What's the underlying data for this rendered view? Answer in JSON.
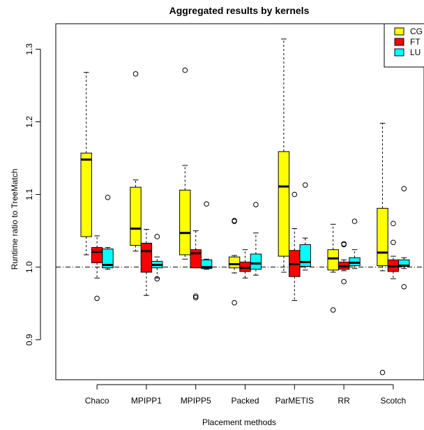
{
  "chart_data": {
    "type": "boxplot",
    "title": "Aggregated results by kernels",
    "xlabel": "Placement methods",
    "ylabel": "Runtime ratio to TreeMatch",
    "ylim": [
      0.845,
      1.335
    ],
    "yticks": [
      0.9,
      1.0,
      1.1,
      1.2,
      1.3
    ],
    "ytick_labels": [
      "0.9",
      "1.0",
      "1.1",
      "1.2",
      "1.3"
    ],
    "reference_line": 1.0,
    "grid": false,
    "legend_position": "top-right",
    "categories": [
      "Chaco",
      "MPIPP1",
      "MPIPP5",
      "Packed",
      "ParMETIS",
      "RR",
      "Scotch"
    ],
    "series": [
      {
        "name": "CG",
        "color": "#ffff00",
        "boxes": [
          {
            "whisker_low": 1.017,
            "q1": 1.042,
            "median": 1.148,
            "q3": 1.157,
            "whisker_high": 1.268,
            "outliers": []
          },
          {
            "whisker_low": 1.022,
            "q1": 1.03,
            "median": 1.053,
            "q3": 1.11,
            "whisker_high": 1.12,
            "outliers": [
              1.266
            ]
          },
          {
            "whisker_low": 1.011,
            "q1": 1.017,
            "median": 1.047,
            "q3": 1.106,
            "whisker_high": 1.14,
            "outliers": [
              1.271
            ]
          },
          {
            "whisker_low": 0.992,
            "q1": 0.999,
            "median": 1.004,
            "q3": 1.014,
            "whisker_high": 1.016,
            "outliers": [
              1.064,
              1.063,
              0.951
            ]
          },
          {
            "whisker_low": 0.993,
            "q1": 1.015,
            "median": 1.111,
            "q3": 1.159,
            "whisker_high": 1.314,
            "outliers": []
          },
          {
            "whisker_low": 0.993,
            "q1": 0.996,
            "median": 1.012,
            "q3": 1.024,
            "whisker_high": 1.059,
            "outliers": [
              0.941
            ]
          },
          {
            "whisker_low": 0.995,
            "q1": 1.002,
            "median": 1.02,
            "q3": 1.081,
            "whisker_high": 1.198,
            "outliers": [
              0.855
            ]
          }
        ]
      },
      {
        "name": "FT",
        "color": "#ff0000",
        "boxes": [
          {
            "whisker_low": 0.985,
            "q1": 1.006,
            "median": 1.021,
            "q3": 1.027,
            "whisker_high": 1.043,
            "outliers": [
              0.957
            ]
          },
          {
            "whisker_low": 0.961,
            "q1": 0.993,
            "median": 1.022,
            "q3": 1.033,
            "whisker_high": 1.052,
            "outliers": []
          },
          {
            "whisker_low": 0.999,
            "q1": 0.999,
            "median": 1.019,
            "q3": 1.024,
            "whisker_high": 1.05,
            "outliers": [
              0.96,
              0.958
            ]
          },
          {
            "whisker_low": 0.985,
            "q1": 0.994,
            "median": 0.999,
            "q3": 1.007,
            "whisker_high": 1.024,
            "outliers": []
          },
          {
            "whisker_low": 0.954,
            "q1": 0.987,
            "median": 1.004,
            "q3": 1.023,
            "whisker_high": 1.053,
            "outliers": [
              1.1
            ]
          },
          {
            "whisker_low": 0.995,
            "q1": 0.997,
            "median": 1.001,
            "q3": 1.007,
            "whisker_high": 1.01,
            "outliers": [
              1.032,
              1.031,
              0.98
            ]
          },
          {
            "whisker_low": 0.984,
            "q1": 0.994,
            "median": 1.001,
            "q3": 1.01,
            "whisker_high": 1.015,
            "outliers": [
              1.06,
              1.034
            ]
          }
        ]
      },
      {
        "name": "LU",
        "color": "#00ffff",
        "boxes": [
          {
            "whisker_low": 0.997,
            "q1": 0.999,
            "median": 1.003,
            "q3": 1.025,
            "whisker_high": 1.027,
            "outliers": [
              1.096
            ]
          },
          {
            "whisker_low": 0.985,
            "q1": 0.999,
            "median": 1.003,
            "q3": 1.008,
            "whisker_high": 1.014,
            "outliers": [
              1.042,
              0.984
            ]
          },
          {
            "whisker_low": 0.997,
            "q1": 0.998,
            "median": 1.0,
            "q3": 1.01,
            "whisker_high": 1.011,
            "outliers": [
              1.087
            ]
          },
          {
            "whisker_low": 0.989,
            "q1": 0.997,
            "median": 1.005,
            "q3": 1.018,
            "whisker_high": 1.047,
            "outliers": [
              1.086
            ]
          },
          {
            "whisker_low": 0.996,
            "q1": 1.001,
            "median": 1.007,
            "q3": 1.031,
            "whisker_high": 1.04,
            "outliers": [
              1.113
            ]
          },
          {
            "whisker_low": 0.998,
            "q1": 1.002,
            "median": 1.006,
            "q3": 1.013,
            "whisker_high": 1.024,
            "outliers": [
              1.063
            ]
          },
          {
            "whisker_low": 0.998,
            "q1": 1.001,
            "median": 1.002,
            "q3": 1.01,
            "whisker_high": 1.013,
            "outliers": [
              1.108,
              0.973
            ]
          }
        ]
      }
    ]
  }
}
